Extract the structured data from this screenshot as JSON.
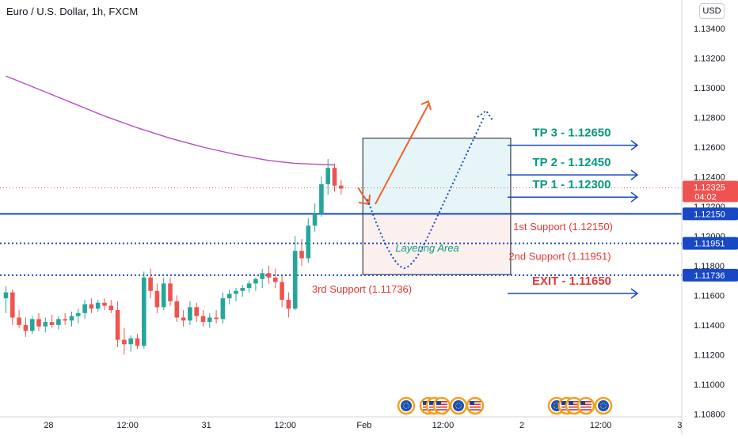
{
  "header": {
    "title": "Euro / U.S. Dollar, 1h, FXCM",
    "currency": "USD"
  },
  "colors": {
    "up": "#26a69a",
    "down": "#ef5350",
    "ma": "#b44fc2",
    "blue": "#1848c4",
    "orange": "#f2612c",
    "tp": "#089981",
    "red_text": "#e53935",
    "axis_text": "#131722"
  },
  "chart_data": {
    "type": "candlestick",
    "title": "Euro / U.S. Dollar, 1h, FXCM",
    "y_axis": {
      "min": 1.107,
      "max": 1.1355,
      "ticks": [
        "1.13400",
        "1.13200",
        "1.13000",
        "1.12800",
        "1.12600",
        "1.12400",
        "1.12200",
        "1.12000",
        "1.11800",
        "1.11600",
        "1.11400",
        "1.11200",
        "1.11000",
        "1.10800"
      ]
    },
    "x_axis": {
      "min": 0,
      "max": 94,
      "ticks": [
        {
          "x": 6.5,
          "label": "28"
        },
        {
          "x": 18.5,
          "label": "12:00"
        },
        {
          "x": 30.5,
          "label": "31"
        },
        {
          "x": 42.5,
          "label": "12:00"
        },
        {
          "x": 54.5,
          "label": "Feb"
        },
        {
          "x": 66.5,
          "label": "12:00"
        },
        {
          "x": 78.5,
          "label": "2"
        },
        {
          "x": 90.5,
          "label": "12:00"
        },
        {
          "x": 102.5,
          "label": "3"
        }
      ]
    },
    "candles": [
      [
        1.1158,
        1.1166,
        1.1148,
        1.1162
      ],
      [
        1.1162,
        1.1164,
        1.114,
        1.1145
      ],
      [
        1.1145,
        1.115,
        1.1138,
        1.114
      ],
      [
        1.114,
        1.1145,
        1.1132,
        1.1136
      ],
      [
        1.1136,
        1.1146,
        1.1134,
        1.1144
      ],
      [
        1.1144,
        1.1148,
        1.1136,
        1.1139
      ],
      [
        1.1139,
        1.1145,
        1.1135,
        1.1142
      ],
      [
        1.1142,
        1.1147,
        1.1138,
        1.114
      ],
      [
        1.114,
        1.1146,
        1.1137,
        1.1144
      ],
      [
        1.1144,
        1.1148,
        1.114,
        1.1143
      ],
      [
        1.1143,
        1.1149,
        1.1139,
        1.1146
      ],
      [
        1.1146,
        1.1151,
        1.1141,
        1.1148
      ],
      [
        1.1148,
        1.1157,
        1.1144,
        1.1154
      ],
      [
        1.1154,
        1.1158,
        1.1148,
        1.1151
      ],
      [
        1.1151,
        1.1157,
        1.1149,
        1.1155
      ],
      [
        1.1155,
        1.1158,
        1.115,
        1.1153
      ],
      [
        1.1153,
        1.1157,
        1.1148,
        1.115
      ],
      [
        1.115,
        1.1156,
        1.1125,
        1.113
      ],
      [
        1.113,
        1.1138,
        1.112,
        1.1127
      ],
      [
        1.1127,
        1.1133,
        1.1122,
        1.1131
      ],
      [
        1.1131,
        1.1134,
        1.1124,
        1.1126
      ],
      [
        1.1126,
        1.1176,
        1.1124,
        1.1172
      ],
      [
        1.1172,
        1.1178,
        1.1158,
        1.1163
      ],
      [
        1.1163,
        1.1168,
        1.1148,
        1.1152
      ],
      [
        1.1152,
        1.1172,
        1.115,
        1.1168
      ],
      [
        1.1168,
        1.1172,
        1.1153,
        1.1156
      ],
      [
        1.1156,
        1.116,
        1.1142,
        1.1145
      ],
      [
        1.1145,
        1.115,
        1.1139,
        1.1143
      ],
      [
        1.1143,
        1.1156,
        1.114,
        1.1152
      ],
      [
        1.1152,
        1.1155,
        1.1142,
        1.1146
      ],
      [
        1.1146,
        1.115,
        1.1139,
        1.1142
      ],
      [
        1.1142,
        1.1148,
        1.1138,
        1.1145
      ],
      [
        1.1145,
        1.115,
        1.1141,
        1.1144
      ],
      [
        1.1144,
        1.1162,
        1.1141,
        1.1158
      ],
      [
        1.1158,
        1.1164,
        1.1154,
        1.1161
      ],
      [
        1.1161,
        1.1165,
        1.1156,
        1.1163
      ],
      [
        1.1163,
        1.1167,
        1.1159,
        1.1165
      ],
      [
        1.1165,
        1.117,
        1.1162,
        1.1168
      ],
      [
        1.1168,
        1.1172,
        1.1163,
        1.1171
      ],
      [
        1.1171,
        1.1178,
        1.1165,
        1.1175
      ],
      [
        1.1175,
        1.118,
        1.1168,
        1.1172
      ],
      [
        1.1172,
        1.1178,
        1.1165,
        1.1169
      ],
      [
        1.1169,
        1.1173,
        1.1152,
        1.1157
      ],
      [
        1.1157,
        1.1162,
        1.1145,
        1.1151
      ],
      [
        1.1151,
        1.12,
        1.115,
        1.119
      ],
      [
        1.119,
        1.1198,
        1.118,
        1.1185
      ],
      [
        1.1185,
        1.1212,
        1.1182,
        1.1207
      ],
      [
        1.1207,
        1.1222,
        1.1203,
        1.1215
      ],
      [
        1.1215,
        1.124,
        1.1213,
        1.1235
      ],
      [
        1.1235,
        1.1252,
        1.1228,
        1.1246
      ],
      [
        1.1246,
        1.1249,
        1.123,
        1.1234
      ],
      [
        1.1234,
        1.1238,
        1.1228,
        1.1232
      ]
    ],
    "moving_average": [
      [
        0,
        1.1308
      ],
      [
        5,
        1.1299
      ],
      [
        10,
        1.129
      ],
      [
        15,
        1.1281
      ],
      [
        20,
        1.1273
      ],
      [
        25,
        1.1266
      ],
      [
        30,
        1.126
      ],
      [
        35,
        1.1255
      ],
      [
        40,
        1.1251
      ],
      [
        44,
        1.1249
      ],
      [
        50,
        1.1248
      ]
    ],
    "horizontal_lines": [
      {
        "price": 1.1215,
        "style": "solid",
        "label": "1.12150"
      },
      {
        "price": 1.11951,
        "style": "dotted",
        "label": "1.11951"
      },
      {
        "price": 1.11736,
        "style": "dotted",
        "label": "1.11736"
      }
    ],
    "last_price": {
      "price": 1.12325,
      "label": "1.12325",
      "timer": "04:02"
    },
    "zones": [
      {
        "x1": 54.3,
        "x2": 76.8,
        "y1": 1.1215,
        "y2": 1.1266,
        "kind": "profit"
      },
      {
        "x1": 54.3,
        "x2": 76.8,
        "y1": 1.1174,
        "y2": 1.1215,
        "kind": "layering",
        "label": "Layering Area"
      }
    ],
    "annotations": [
      {
        "text": "TP 3 - 1.12650",
        "price": 1.1265,
        "kind": "tp"
      },
      {
        "text": "TP 2 - 1.12450",
        "price": 1.1245,
        "kind": "tp"
      },
      {
        "text": "TP 1 - 1.12300",
        "price": 1.123,
        "kind": "tp"
      },
      {
        "text": "EXIT - 1.11650",
        "price": 1.1165,
        "kind": "exit"
      }
    ],
    "support_labels": [
      {
        "text": "1st Support (1.12150)",
        "price": 1.1206
      },
      {
        "text": "2nd Support (1.11951)",
        "price": 1.1186
      },
      {
        "text": "3rd Support (1.11736)",
        "price": 1.1164
      }
    ],
    "event_icons": {
      "group1": [
        "eu",
        "us",
        "us",
        "us",
        "eu",
        "us"
      ],
      "group2": [
        "eu",
        "us",
        "us",
        "us",
        "eu"
      ]
    }
  }
}
